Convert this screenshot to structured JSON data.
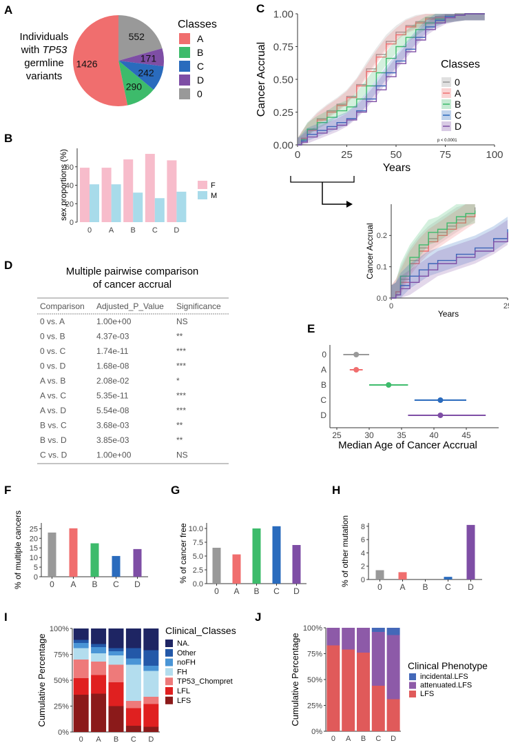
{
  "panel_letters": {
    "A": "A",
    "B": "B",
    "C": "C",
    "D": "D",
    "E": "E",
    "F": "F",
    "G": "G",
    "H": "H",
    "I": "I",
    "J": "J"
  },
  "colors": {
    "0": "#999999",
    "A": "#f06e6e",
    "B": "#3dbb6b",
    "C": "#2a6bbd",
    "D": "#7e4ea5",
    "F": "#f7bccb",
    "M": "#a8dbea"
  },
  "panel_a": {
    "caption_lines": [
      "Individuals",
      "with",
      "TP53",
      "germline",
      "variants"
    ],
    "legend_title": "Classes",
    "legend_items": [
      "A",
      "B",
      "C",
      "D",
      "0"
    ],
    "chart_data": {
      "type": "pie",
      "labels": [
        "0",
        "D",
        "C",
        "B",
        "A"
      ],
      "values": [
        552,
        171,
        242,
        290,
        1426
      ]
    }
  },
  "panel_b": {
    "legend_items": [
      "F",
      "M"
    ],
    "chart_data": {
      "type": "bar",
      "ylabel": "sex proportions (%)",
      "categories": [
        "0",
        "A",
        "B",
        "C",
        "D"
      ],
      "ylim": [
        0,
        80
      ],
      "yticks": [
        0,
        20,
        40,
        60
      ],
      "series": [
        {
          "name": "F",
          "values": [
            59,
            59,
            68,
            74,
            67
          ]
        },
        {
          "name": "M",
          "values": [
            41,
            41,
            32,
            26,
            33
          ]
        }
      ]
    }
  },
  "panel_c": {
    "p_value": "p < 0.0001",
    "legend_title": "Classes",
    "legend_items": [
      "0",
      "A",
      "B",
      "C",
      "D"
    ],
    "chart_data": {
      "type": "line",
      "xlabel": "Years",
      "ylabel": "Cancer Accrual",
      "xlim": [
        0,
        100
      ],
      "ylim": [
        0,
        1
      ],
      "xticks": [
        0,
        25,
        50,
        75,
        100
      ],
      "yticks": [
        "0.00",
        "0.25",
        "0.50",
        "0.75",
        "1.00"
      ],
      "series": [
        {
          "name": "0",
          "x": [
            0,
            2,
            5,
            10,
            15,
            20,
            25,
            30,
            35,
            40,
            45,
            50,
            55,
            60,
            65,
            70,
            75,
            80,
            85,
            90,
            95
          ],
          "y": [
            0,
            0.05,
            0.12,
            0.2,
            0.26,
            0.31,
            0.37,
            0.46,
            0.58,
            0.69,
            0.79,
            0.86,
            0.91,
            0.94,
            0.97,
            0.98,
            0.99,
            1,
            1,
            1,
            1
          ]
        },
        {
          "name": "A",
          "x": [
            0,
            2,
            5,
            10,
            15,
            20,
            25,
            30,
            35,
            40,
            45,
            50,
            55,
            60,
            65,
            70,
            75,
            80,
            85,
            90,
            95
          ],
          "y": [
            0,
            0.05,
            0.11,
            0.19,
            0.25,
            0.3,
            0.36,
            0.45,
            0.56,
            0.67,
            0.77,
            0.84,
            0.9,
            0.93,
            0.96,
            0.97,
            0.98,
            0.99,
            1,
            1,
            1
          ]
        },
        {
          "name": "B",
          "x": [
            0,
            2,
            5,
            10,
            15,
            20,
            25,
            30,
            35,
            40,
            45,
            50,
            55,
            60,
            65,
            70,
            75,
            80,
            85,
            90,
            95
          ],
          "y": [
            0,
            0.04,
            0.12,
            0.17,
            0.21,
            0.26,
            0.29,
            0.35,
            0.45,
            0.55,
            0.66,
            0.75,
            0.82,
            0.88,
            0.93,
            0.96,
            0.98,
            0.99,
            1,
            1,
            1
          ]
        },
        {
          "name": "C",
          "x": [
            0,
            2,
            5,
            10,
            15,
            20,
            25,
            30,
            35,
            40,
            45,
            50,
            55,
            60,
            65,
            70,
            75,
            80,
            85,
            90,
            95
          ],
          "y": [
            0,
            0.03,
            0.08,
            0.11,
            0.14,
            0.17,
            0.2,
            0.26,
            0.35,
            0.45,
            0.55,
            0.64,
            0.73,
            0.82,
            0.9,
            0.95,
            0.98,
            0.99,
            1,
            1,
            1
          ]
        },
        {
          "name": "D",
          "x": [
            0,
            2,
            5,
            10,
            15,
            20,
            25,
            30,
            35,
            40,
            45,
            50,
            55,
            60,
            65,
            70,
            75,
            80,
            85,
            90,
            95
          ],
          "y": [
            0,
            0.02,
            0.06,
            0.09,
            0.12,
            0.15,
            0.19,
            0.25,
            0.33,
            0.42,
            0.52,
            0.62,
            0.71,
            0.8,
            0.88,
            0.93,
            0.97,
            0.99,
            1,
            1,
            1
          ]
        }
      ]
    },
    "zoom_chart_data": {
      "type": "line",
      "xlabel": "Years",
      "ylabel": "Cancer Accrual",
      "xlim": [
        0,
        25
      ],
      "ylim": [
        0,
        0.3
      ],
      "xticks": [
        0,
        25
      ],
      "yticks": [
        "0.0",
        "0.1",
        "0.2"
      ],
      "series": [
        {
          "name": "0",
          "x": [
            0,
            1,
            2,
            4,
            6,
            8,
            10,
            12,
            14,
            16,
            18
          ],
          "y": [
            0,
            0.02,
            0.06,
            0.12,
            0.16,
            0.19,
            0.21,
            0.23,
            0.25,
            0.27,
            0.29
          ]
        },
        {
          "name": "A",
          "x": [
            0,
            1,
            2,
            4,
            6,
            8,
            10,
            12,
            14,
            16,
            18
          ],
          "y": [
            0,
            0.02,
            0.05,
            0.11,
            0.15,
            0.18,
            0.2,
            0.22,
            0.24,
            0.26,
            0.28
          ]
        },
        {
          "name": "B",
          "x": [
            0,
            1,
            2,
            4,
            6,
            8,
            10,
            12,
            14,
            16,
            18
          ],
          "y": [
            0,
            0.01,
            0.07,
            0.13,
            0.17,
            0.21,
            0.22,
            0.24,
            0.26,
            0.27,
            0.28
          ]
        },
        {
          "name": "C",
          "x": [
            0,
            1,
            2,
            4,
            6,
            8,
            10,
            14,
            18,
            22,
            25
          ],
          "y": [
            0,
            0.01,
            0.04,
            0.07,
            0.09,
            0.11,
            0.12,
            0.14,
            0.16,
            0.19,
            0.22
          ]
        },
        {
          "name": "D",
          "x": [
            0,
            1,
            2,
            4,
            6,
            8,
            10,
            14,
            18,
            22,
            25
          ],
          "y": [
            0,
            0.01,
            0.03,
            0.05,
            0.07,
            0.09,
            0.11,
            0.13,
            0.15,
            0.18,
            0.21
          ]
        }
      ]
    }
  },
  "panel_d": {
    "title_line1": "Multiple pairwise comparison",
    "title_line2": "of cancer accrual",
    "headers": [
      "Comparison",
      "Adjusted_P_Value",
      "Significance"
    ],
    "rows": [
      [
        "0 vs. A",
        "1.00e+00",
        "NS"
      ],
      [
        "0 vs. B",
        "4.37e-03",
        "**"
      ],
      [
        "0 vs. C",
        "1.74e-11",
        "***"
      ],
      [
        "0 vs. D",
        "1.68e-08",
        "***"
      ],
      [
        "A vs. B",
        "2.08e-02",
        "*"
      ],
      [
        "A vs. C",
        "5.35e-11",
        "***"
      ],
      [
        "A vs. D",
        "5.54e-08",
        "***"
      ],
      [
        "B vs. C",
        "3.68e-03",
        "**"
      ],
      [
        "B vs. D",
        "3.85e-03",
        "**"
      ],
      [
        "C vs. D",
        "1.00e+00",
        "NS"
      ]
    ]
  },
  "panel_e": {
    "chart_data": {
      "type": "scatter",
      "xlabel": "Median Age of Cancer Accrual",
      "xlim": [
        25,
        50
      ],
      "xticks": [
        25,
        30,
        35,
        40,
        45
      ],
      "categories": [
        "0",
        "A",
        "B",
        "C",
        "D"
      ],
      "median": [
        28,
        28,
        33,
        41,
        41
      ],
      "low": [
        26,
        27,
        30,
        37,
        36
      ],
      "high": [
        30,
        29,
        36,
        45,
        48
      ]
    }
  },
  "panel_f": {
    "chart_data": {
      "type": "bar",
      "ylabel": "% of multiple cancers",
      "categories": [
        "0",
        "A",
        "B",
        "C",
        "D"
      ],
      "values": [
        23,
        25.2,
        17.4,
        10.8,
        14.4
      ],
      "ylim": [
        0,
        28
      ],
      "yticks": [
        0,
        5,
        10,
        15,
        20,
        25
      ]
    }
  },
  "panel_g": {
    "chart_data": {
      "type": "bar",
      "ylabel": "% of cancer free",
      "categories": [
        "0",
        "A",
        "B",
        "C",
        "D"
      ],
      "values": [
        6.5,
        5.3,
        10,
        10.4,
        7
      ],
      "ylim": [
        0,
        11
      ],
      "yticks": [
        "0.0",
        "2.5",
        "5.0",
        "7.5",
        "10.0"
      ]
    }
  },
  "panel_h": {
    "chart_data": {
      "type": "bar",
      "ylabel": "% of other mutation",
      "categories": [
        "0",
        "A",
        "B",
        "C",
        "D"
      ],
      "values": [
        1.4,
        1.1,
        0,
        0.4,
        8.2
      ],
      "ylim": [
        0,
        8.5
      ],
      "yticks": [
        0,
        2,
        4,
        6,
        8
      ]
    }
  },
  "panel_i": {
    "legend_title": "Clinical_Classes",
    "legend_items": [
      "NA.",
      "Other",
      "noFH",
      "FH",
      "TP53_Chompret",
      "LFL",
      "LFS"
    ],
    "chart_data": {
      "type": "bar",
      "stacked": true,
      "ylabel": "Cumulative Percentage",
      "categories": [
        "0",
        "A",
        "B",
        "C",
        "D"
      ],
      "yticks": [
        "0%",
        "25%",
        "50%",
        "75%",
        "100%"
      ],
      "series": [
        {
          "name": "LFS",
          "color": "#8b1a1a",
          "values": [
            36,
            37,
            25,
            6,
            5
          ]
        },
        {
          "name": "LFL",
          "color": "#e02020",
          "values": [
            16,
            18,
            23,
            17,
            22
          ]
        },
        {
          "name": "TP53_Chompret",
          "color": "#ee7a7a",
          "values": [
            18,
            13,
            17,
            7,
            7
          ]
        },
        {
          "name": "FH",
          "color": "#b3ddee",
          "values": [
            11,
            8,
            9,
            35,
            25
          ]
        },
        {
          "name": "noFH",
          "color": "#4a95d6",
          "values": [
            5,
            6,
            4,
            6,
            5
          ]
        },
        {
          "name": "Other",
          "color": "#2358a8",
          "values": [
            3,
            3,
            3,
            10,
            15
          ]
        },
        {
          "name": "NA.",
          "color": "#1e2563",
          "values": [
            11,
            15,
            19,
            19,
            21
          ]
        }
      ]
    }
  },
  "panel_j": {
    "legend_title": "Clinical Phenotype",
    "legend_items": [
      "incidental.LFS",
      "attenuated.LFS",
      "LFS"
    ],
    "chart_data": {
      "type": "bar",
      "stacked": true,
      "ylabel": "Cumulative Percentage",
      "categories": [
        "0",
        "A",
        "B",
        "C",
        "D"
      ],
      "yticks": [
        "0%",
        "25%",
        "50%",
        "75%",
        "100%"
      ],
      "series": [
        {
          "name": "LFS",
          "color": "#e05a5a",
          "values": [
            83,
            79,
            76,
            44,
            31
          ]
        },
        {
          "name": "attenuated.LFS",
          "color": "#8d5aa8",
          "values": [
            17,
            21,
            24,
            52,
            62
          ]
        },
        {
          "name": "incidental.LFS",
          "color": "#4468b8",
          "values": [
            0,
            0,
            0,
            4,
            7
          ]
        }
      ]
    }
  }
}
